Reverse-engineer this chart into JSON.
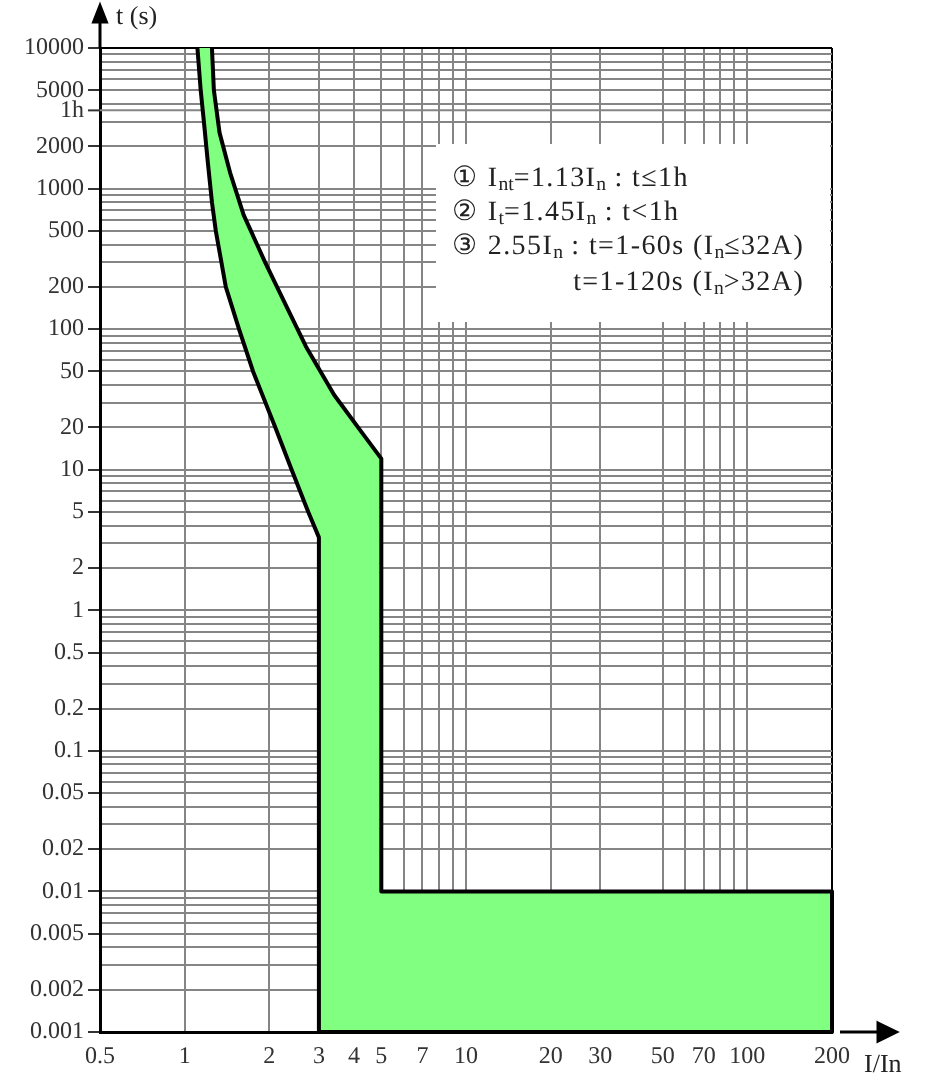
{
  "chart_data": {
    "type": "area",
    "xlabel": "I/In",
    "ylabel": "t (s)",
    "annotations": [
      "① I$_{nt}$=1.13I$_{n}$ : t≤1h",
      "② I$_{t}$=1.45I$_{n}$ : t<1h",
      "③ 2.55I$_{n}$ : t=1-60s (I$_{n}$≤32A)\nt=1-120s (I$_{n}$>32A)"
    ],
    "x": [
      1.11,
      1.14,
      1.17,
      1.21,
      1.25,
      1.29,
      1.4,
      1.56,
      1.75,
      2.1,
      2.4,
      2.75,
      3,
      3,
      200,
      200,
      5,
      5,
      4.3,
      3.4,
      2.7,
      2.3,
      1.93,
      1.62,
      1.45,
      1.33,
      1.27,
      1.25
    ],
    "values": [
      10000,
      5000,
      3000,
      1500,
      800,
      500,
      200,
      100,
      50,
      20,
      10,
      5,
      3.3,
      0.001,
      0.001,
      0.01,
      0.01,
      12,
      18,
      34,
      75,
      145,
      300,
      650,
      1300,
      2500,
      5000,
      10000
    ],
    "color": "#80ff80",
    "log": "xy",
    "grid": true,
    "marker": "none",
    "ref_lines": [
      {
        "axis": "y",
        "value": 3600,
        "label": "1h",
        "color": "#858585"
      }
    ],
    "xlim": [
      0.5,
      200
    ],
    "xticks": [
      0.5,
      1,
      2,
      3,
      4,
      5,
      {
        "value": 6,
        "label": null
      },
      7,
      {
        "value": 8,
        "label": null
      },
      {
        "value": 9,
        "label": null
      },
      10,
      20,
      30,
      50,
      {
        "value": 60,
        "label": null
      },
      70,
      {
        "value": 80,
        "label": null
      },
      {
        "value": 90,
        "label": null
      },
      100,
      200
    ],
    "ylim": [
      0.001,
      10000
    ],
    "yticks": [
      0.001,
      0.002,
      {
        "value": 0.003,
        "label": null
      },
      {
        "value": 0.004,
        "label": null
      },
      0.005,
      {
        "value": 0.006,
        "label": null
      },
      {
        "value": 0.007,
        "label": null
      },
      {
        "value": 0.008,
        "label": null
      },
      {
        "value": 0.009,
        "label": null
      },
      0.01,
      0.02,
      {
        "value": 0.03,
        "label": null
      },
      {
        "value": 0.04,
        "label": null
      },
      0.05,
      {
        "value": 0.06,
        "label": null
      },
      {
        "value": 0.07,
        "label": null
      },
      {
        "value": 0.08,
        "label": null
      },
      {
        "value": 0.09,
        "label": null
      },
      0.1,
      0.2,
      {
        "value": 0.3,
        "label": null
      },
      {
        "value": 0.4,
        "label": null
      },
      0.5,
      {
        "value": 0.6,
        "label": null
      },
      {
        "value": 0.7,
        "label": null
      },
      {
        "value": 0.8,
        "label": null
      },
      {
        "value": 0.9,
        "label": null
      },
      1,
      2,
      {
        "value": 3,
        "label": null
      },
      {
        "value": 4,
        "label": null
      },
      5,
      {
        "value": 6,
        "label": null
      },
      {
        "value": 7,
        "label": null
      },
      {
        "value": 8,
        "label": null
      },
      {
        "value": 9,
        "label": null
      },
      10,
      20,
      {
        "value": 30,
        "label": null
      },
      {
        "value": 40,
        "label": null
      },
      50,
      {
        "value": 60,
        "label": null
      },
      {
        "value": 70,
        "label": null
      },
      {
        "value": 80,
        "label": null
      },
      {
        "value": 90,
        "label": null
      },
      100,
      200,
      {
        "value": 300,
        "label": null
      },
      {
        "value": 400,
        "label": null
      },
      500,
      {
        "value": 600,
        "label": null
      },
      {
        "value": 700,
        "label": null
      },
      {
        "value": 800,
        "label": null
      },
      {
        "value": 900,
        "label": null
      },
      1000,
      2000,
      {
        "value": 3000,
        "label": null
      },
      {
        "value": 4000,
        "label": null
      },
      5000,
      {
        "value": 6000,
        "label": null
      },
      {
        "value": 7000,
        "label": null
      },
      {
        "value": 8000,
        "label": null
      },
      {
        "value": 9000,
        "label": null
      },
      10000
    ]
  }
}
